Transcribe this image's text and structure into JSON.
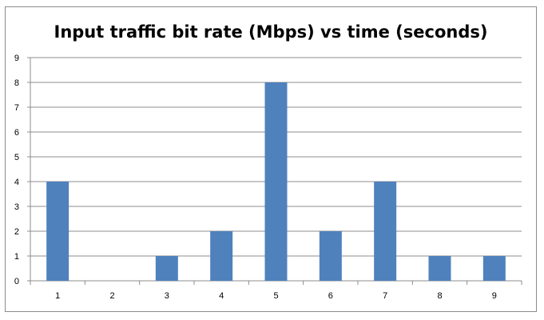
{
  "chart_data": {
    "type": "bar",
    "title": "Input traffic bit rate (Mbps) vs time (seconds)",
    "xlabel": "",
    "ylabel": "",
    "categories": [
      "1",
      "2",
      "3",
      "4",
      "5",
      "6",
      "7",
      "8",
      "9"
    ],
    "values": [
      4,
      0,
      1,
      2,
      8,
      2,
      4,
      1,
      1
    ],
    "ylim": [
      0,
      9
    ],
    "yticks": [
      0,
      1,
      2,
      3,
      4,
      5,
      6,
      7,
      8,
      9
    ],
    "grid": true,
    "legend": "none",
    "bar_color": "#4f81bd",
    "grid_color": "#8c8c8c"
  }
}
